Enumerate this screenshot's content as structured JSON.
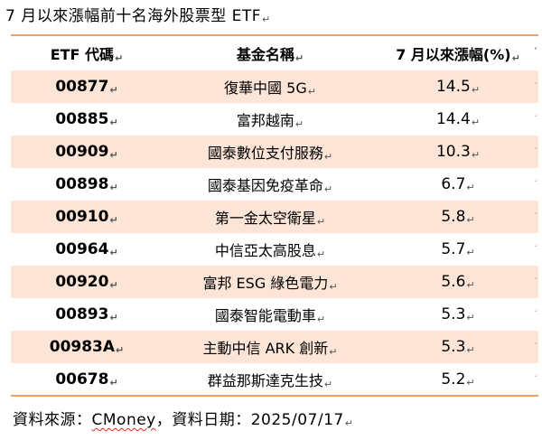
{
  "caption": "7 月以來漲幅前十名海外股票型 ETF",
  "paragraph_mark": "↵",
  "columns": [
    "ETF 代碼",
    "基金名稱",
    "7 月以來漲幅(%)"
  ],
  "rows": [
    {
      "code": "00877",
      "name": "復華中國 5G",
      "change": "14.5"
    },
    {
      "code": "00885",
      "name": "富邦越南",
      "change": "14.4"
    },
    {
      "code": "00909",
      "name": "國泰數位支付服務",
      "change": "10.3"
    },
    {
      "code": "00898",
      "name": "國泰基因免疫革命",
      "change": "6.7"
    },
    {
      "code": "00910",
      "name": "第一金太空衛星",
      "change": "5.8"
    },
    {
      "code": "00964",
      "name": "中信亞太高股息",
      "change": "5.7"
    },
    {
      "code": "00920",
      "name": "富邦 ESG 綠色電力",
      "change": "5.6"
    },
    {
      "code": "00893",
      "name": "國泰智能電動車",
      "change": "5.3"
    },
    {
      "code": "00983A",
      "name": "主動中信 ARK 創新",
      "change": "5.3"
    },
    {
      "code": "00678",
      "name": "群益那斯達克生技",
      "change": "5.2"
    }
  ],
  "source": {
    "prefix": "資料來源：",
    "name": "CMoney",
    "suffix": "，資料日期：2025/07/17"
  },
  "colors": {
    "row_shading": "#fce4d6",
    "rule": "#f0a060",
    "spellcheck": "#e0301e"
  }
}
